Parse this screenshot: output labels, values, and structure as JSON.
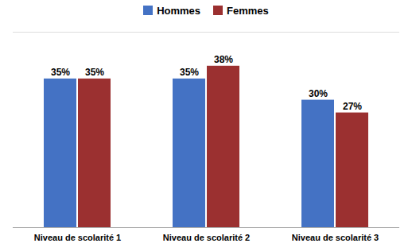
{
  "chart_data": {
    "type": "bar",
    "categories": [
      "Niveau de scolarité 1",
      "Niveau de scolarité 2",
      "Niveau de scolarité 3"
    ],
    "series": [
      {
        "name": "Hommes",
        "color": "#4472C4",
        "values": [
          35,
          35,
          30
        ],
        "value_labels": [
          "35%",
          "35%",
          "30%"
        ]
      },
      {
        "name": "Femmes",
        "color": "#9B3030",
        "values": [
          35,
          38,
          27
        ],
        "value_labels": [
          "35%",
          "38%",
          "27%"
        ]
      }
    ],
    "ylim": [
      0,
      46
    ],
    "grid": false,
    "legend": "top",
    "data_labels": true,
    "tick_labels": "x"
  }
}
